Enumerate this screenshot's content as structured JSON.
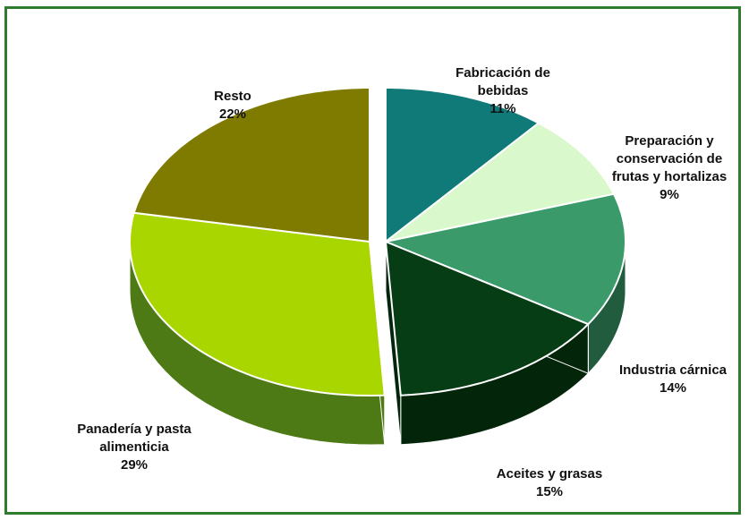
{
  "chart_data": {
    "type": "pie",
    "style": "3d-exploded",
    "slices": [
      {
        "label": "Fabricación de\nbebidas",
        "value": 11,
        "pct_label": "11%",
        "color": "#0f7a78",
        "side": "#0b5553"
      },
      {
        "label": "Preparación y\nconservación de\nfrutas y hortalizas",
        "value": 9,
        "pct_label": "9%",
        "color": "#d9f8cc",
        "side": "#a9c9a0"
      },
      {
        "label": "Industria cárnica",
        "value": 14,
        "pct_label": "14%",
        "color": "#3a9a6a",
        "side": "#215c3e"
      },
      {
        "label": "Aceites y grasas",
        "value": 15,
        "pct_label": "15%",
        "color": "#063d14",
        "side": "#03260b"
      },
      {
        "label": "Panadería y pasta\nalimenticia",
        "value": 29,
        "pct_label": "29%",
        "color": "#aad600",
        "side": "#4e7a16"
      },
      {
        "label": "Resto",
        "value": 22,
        "pct_label": "22%",
        "color": "#7f7a00",
        "side": "#4f4c00"
      }
    ],
    "legend": "none"
  },
  "colors": {
    "frame_border": "#2e7d2e",
    "background": "#ffffff"
  }
}
